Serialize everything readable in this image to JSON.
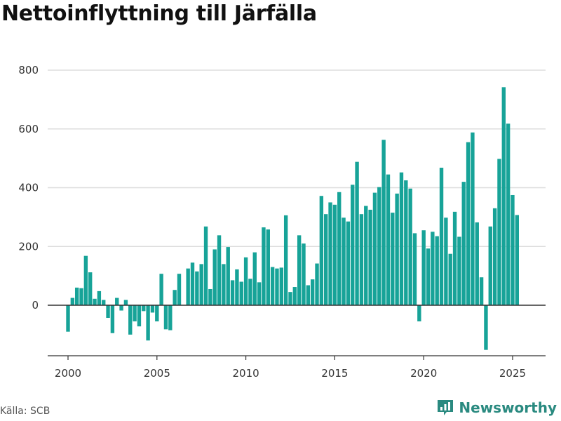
{
  "title": "Nettoinflyttning till Järfälla",
  "source": "Källa: SCB",
  "brand": "Newsworthy",
  "colors": {
    "bar": "#17a398",
    "grid": "#dddddd",
    "zero_line": "#333333",
    "brand": "#2a8a80"
  },
  "chart_data": {
    "type": "bar",
    "title": "Nettoinflyttning till Järfälla",
    "xlabel": "",
    "ylabel": "",
    "ylim": [
      -150,
      800
    ],
    "xlim": [
      2000,
      2025.75
    ],
    "y_ticks": [
      0,
      200,
      400,
      600,
      800
    ],
    "x_ticks": [
      2000,
      2005,
      2010,
      2015,
      2020,
      2025
    ],
    "grid": true,
    "values_by_year": [
      {
        "year": 2000,
        "values": [
          -90,
          25,
          60,
          58
        ]
      },
      {
        "year": 2001,
        "values": [
          168,
          112,
          22,
          48
        ]
      },
      {
        "year": 2002,
        "values": [
          18,
          -43,
          -95,
          25
        ]
      },
      {
        "year": 2003,
        "values": [
          -18,
          18,
          -100,
          -55
        ]
      },
      {
        "year": 2004,
        "values": [
          -72,
          -20,
          -120,
          -25
        ]
      },
      {
        "year": 2005,
        "values": [
          -55,
          107,
          -82,
          -85
        ]
      },
      {
        "year": 2006,
        "values": [
          52,
          107,
          0,
          125
        ]
      },
      {
        "year": 2007,
        "values": [
          145,
          115,
          140,
          268
        ]
      },
      {
        "year": 2008,
        "values": [
          55,
          190,
          238,
          140
        ]
      },
      {
        "year": 2009,
        "values": [
          198,
          85,
          122,
          80
        ]
      },
      {
        "year": 2010,
        "values": [
          163,
          90,
          180,
          78
        ]
      },
      {
        "year": 2011,
        "values": [
          265,
          258,
          130,
          125
        ]
      },
      {
        "year": 2012,
        "values": [
          128,
          306,
          45,
          62
        ]
      },
      {
        "year": 2013,
        "values": [
          238,
          210,
          68,
          88
        ]
      },
      {
        "year": 2014,
        "values": [
          142,
          372,
          310,
          350
        ]
      },
      {
        "year": 2015,
        "values": [
          342,
          385,
          298,
          285
        ]
      },
      {
        "year": 2016,
        "values": [
          410,
          488,
          310,
          338
        ]
      },
      {
        "year": 2017,
        "values": [
          325,
          383,
          402,
          563
        ]
      },
      {
        "year": 2018,
        "values": [
          445,
          315,
          380,
          452
        ]
      },
      {
        "year": 2019,
        "values": [
          425,
          397,
          245,
          -55
        ]
      },
      {
        "year": 2020,
        "values": [
          255,
          193,
          250,
          235
        ]
      },
      {
        "year": 2021,
        "values": [
          468,
          298,
          175,
          318
        ]
      },
      {
        "year": 2022,
        "values": [
          233,
          420,
          555,
          588
        ]
      },
      {
        "year": 2023,
        "values": [
          282,
          95,
          -152,
          268
        ]
      },
      {
        "year": 2024,
        "values": [
          330,
          498,
          742,
          618
        ]
      },
      {
        "year": 2025,
        "values": [
          375,
          307
        ]
      }
    ]
  }
}
